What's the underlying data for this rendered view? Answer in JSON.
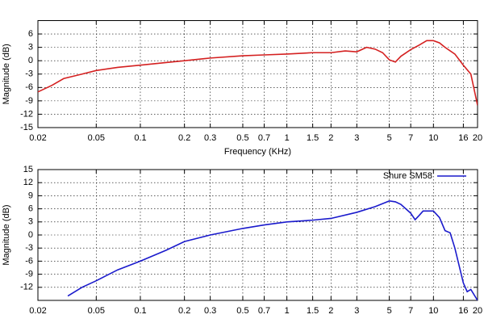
{
  "chart_data": [
    {
      "type": "line",
      "xscale": "log",
      "grid": true,
      "xlabel": "Frequency (KHz)",
      "ylabel": "Magnitude (dB)",
      "xlim": [
        0.02,
        20
      ],
      "xticks": [
        0.02,
        0.05,
        0.1,
        0.2,
        0.3,
        0.5,
        0.7,
        1,
        1.5,
        2,
        3,
        5,
        7,
        10,
        16,
        20
      ],
      "ylim": [
        -15,
        9
      ],
      "yticks": [
        -15,
        -12,
        -9,
        -6,
        -3,
        0,
        3,
        6
      ],
      "x": [
        0.02,
        0.025,
        0.03,
        0.04,
        0.05,
        0.07,
        0.1,
        0.15,
        0.2,
        0.3,
        0.5,
        0.7,
        1,
        1.5,
        2,
        2.5,
        3,
        3.5,
        4,
        4.5,
        5,
        5.5,
        6,
        7,
        8,
        9,
        10,
        11,
        12,
        14,
        16,
        18,
        20
      ],
      "series": [
        {
          "color": "#d42020",
          "values": [
            -7,
            -5.5,
            -4,
            -3,
            -2.2,
            -1.5,
            -1,
            -0.4,
            0,
            0.6,
            1.1,
            1.3,
            1.5,
            1.8,
            1.8,
            2.2,
            2,
            3,
            2.6,
            1.8,
            0.2,
            -0.3,
            1,
            2.5,
            3.5,
            4.5,
            4.5,
            4,
            3,
            1.5,
            -1,
            -3,
            -10
          ]
        }
      ]
    },
    {
      "type": "line",
      "xscale": "log",
      "grid": true,
      "legend": "upper right",
      "ylabel": "Magnitude (dB)",
      "xlim": [
        0.02,
        20
      ],
      "xticks": [
        0.02,
        0.05,
        0.1,
        0.2,
        0.3,
        0.5,
        0.7,
        1,
        1.5,
        2,
        3,
        5,
        7,
        10,
        16,
        20
      ],
      "ylim": [
        -15,
        15
      ],
      "yticks": [
        -12,
        -9,
        -6,
        -3,
        0,
        3,
        6,
        9,
        12,
        15
      ],
      "x": [
        0.032,
        0.04,
        0.05,
        0.07,
        0.1,
        0.15,
        0.2,
        0.3,
        0.5,
        0.7,
        1,
        1.5,
        2,
        3,
        4,
        5,
        5.5,
        6,
        7,
        7.5,
        8,
        8.5,
        10,
        11,
        12,
        13,
        14,
        16,
        17,
        18,
        20
      ],
      "series": [
        {
          "name": "Shure SM58",
          "color": "#1a1acc",
          "values": [
            -14,
            -12,
            -10.5,
            -8,
            -6,
            -3.5,
            -1.5,
            0,
            1.5,
            2.3,
            3,
            3.4,
            3.8,
            5.2,
            6.5,
            7.8,
            7.6,
            7,
            5,
            3.5,
            4.5,
            5.5,
            5.5,
            4,
            1,
            0.5,
            -3,
            -11,
            -13,
            -12.5,
            -15
          ]
        }
      ]
    }
  ]
}
